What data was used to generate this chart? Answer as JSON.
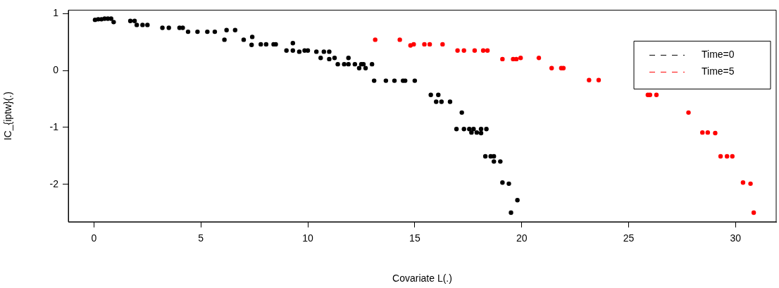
{
  "chart_data": {
    "type": "scatter",
    "xlabel": "Covariate L(.)",
    "ylabel": "IC_{iptw}(.)",
    "xlim": [
      -1.2,
      31.9
    ],
    "ylim": [
      -2.66,
      1.06
    ],
    "xticks": [
      0,
      5,
      10,
      15,
      20,
      25,
      30
    ],
    "yticks": [
      -2,
      -1,
      0,
      1
    ],
    "grid": false,
    "legend": "top right",
    "marker": "circle",
    "series": [
      {
        "name": "Time=0",
        "color": "#000000",
        "x": [
          0.05,
          0.2,
          0.35,
          0.5,
          0.65,
          0.8,
          0.92,
          1.7,
          1.9,
          2.0,
          2.27,
          2.5,
          3.2,
          3.5,
          4.0,
          4.15,
          4.4,
          4.84,
          5.3,
          5.65,
          6.2,
          6.6,
          6.1,
          7.0,
          7.4,
          7.37,
          7.8,
          8.05,
          8.4,
          8.5,
          9.0,
          9.3,
          9.3,
          9.6,
          9.85,
          10.0,
          10.4,
          10.6,
          10.75,
          11.0,
          11.0,
          11.25,
          11.4,
          11.7,
          11.9,
          11.9,
          12.2,
          12.4,
          12.5,
          12.6,
          12.7,
          13.0,
          13.1,
          13.65,
          14.05,
          14.45,
          14.55,
          15.0,
          15.75,
          16.1,
          16.0,
          16.25,
          16.65,
          17.2,
          16.95,
          17.3,
          17.55,
          17.75,
          18.1,
          18.35,
          17.65,
          17.9,
          18.1,
          18.3,
          18.55,
          18.7,
          18.7,
          19.0,
          19.1,
          19.4,
          19.8,
          19.5
        ],
        "values": [
          0.89,
          0.9,
          0.9,
          0.91,
          0.91,
          0.91,
          0.85,
          0.87,
          0.87,
          0.8,
          0.8,
          0.8,
          0.75,
          0.75,
          0.75,
          0.75,
          0.68,
          0.68,
          0.68,
          0.68,
          0.71,
          0.71,
          0.54,
          0.54,
          0.59,
          0.45,
          0.46,
          0.46,
          0.46,
          0.46,
          0.35,
          0.35,
          0.48,
          0.33,
          0.35,
          0.35,
          0.33,
          0.22,
          0.33,
          0.33,
          0.2,
          0.22,
          0.11,
          0.11,
          0.22,
          0.11,
          0.11,
          0.04,
          0.11,
          0.11,
          0.04,
          0.11,
          -0.18,
          -0.18,
          -0.18,
          -0.18,
          -0.18,
          -0.18,
          -0.43,
          -0.43,
          -0.55,
          -0.55,
          -0.55,
          -0.74,
          -1.03,
          -1.03,
          -1.03,
          -1.03,
          -1.03,
          -1.03,
          -1.09,
          -1.09,
          -1.1,
          -1.51,
          -1.51,
          -1.51,
          -1.6,
          -1.6,
          -1.97,
          -1.99,
          -2.28,
          -2.5
        ]
      },
      {
        "name": "Time=5",
        "color": "#ff0000",
        "x": [
          13.15,
          14.3,
          14.8,
          14.95,
          15.45,
          15.7,
          16.3,
          17.0,
          17.3,
          17.8,
          18.2,
          18.4,
          19.1,
          19.6,
          19.75,
          19.95,
          20.8,
          21.4,
          21.85,
          21.95,
          23.15,
          23.6,
          25.9,
          26.0,
          26.3,
          27.8,
          28.45,
          28.7,
          29.05,
          29.3,
          29.6,
          29.85,
          30.35,
          30.7,
          30.85
        ],
        "values": [
          0.54,
          0.54,
          0.44,
          0.46,
          0.46,
          0.46,
          0.46,
          0.35,
          0.35,
          0.35,
          0.35,
          0.35,
          0.2,
          0.2,
          0.2,
          0.22,
          0.22,
          0.04,
          0.04,
          0.04,
          -0.17,
          -0.17,
          -0.43,
          -0.43,
          -0.43,
          -0.74,
          -1.09,
          -1.09,
          -1.1,
          -1.51,
          -1.51,
          -1.51,
          -1.97,
          -1.99,
          -2.5
        ]
      }
    ]
  }
}
